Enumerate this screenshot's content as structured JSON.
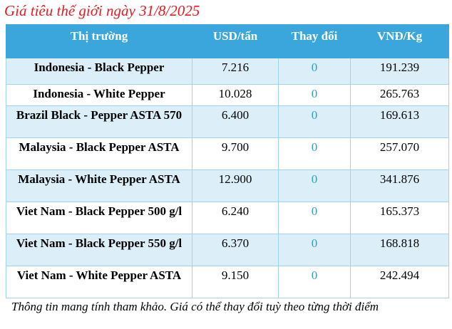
{
  "title": "Giá tiêu thế giới ngày 31/8/2025",
  "table": {
    "headers": [
      "Thị trường",
      "USD/tấn",
      "Thay đổi",
      "VNĐ/Kg"
    ],
    "rows": [
      {
        "market": "Indonesia - Black Pepper",
        "usd": "7.216",
        "change": "0",
        "vnd": "191.239"
      },
      {
        "market": "Indonesia - White Pepper",
        "usd": "10.028",
        "change": "0",
        "vnd": "265.763"
      },
      {
        "market": "Brazil Black - Pepper ASTA 570",
        "usd": "6.400",
        "change": "0",
        "vnd": "169.613"
      },
      {
        "market": "Malaysia - Black Pepper ASTA",
        "usd": "9.700",
        "change": "0",
        "vnd": "257.070"
      },
      {
        "market": "Malaysia - White Pepper ASTA",
        "usd": "12.900",
        "change": "0",
        "vnd": "341.876"
      },
      {
        "market": "Viet Nam - Black Pepper 500 g/l",
        "usd": "6.240",
        "change": "0",
        "vnd": "165.373"
      },
      {
        "market": "Viet Nam - Black Pepper 550 g/l",
        "usd": "6.370",
        "change": "0",
        "vnd": "168.818"
      },
      {
        "market": "Viet Nam - White Pepper ASTA",
        "usd": "9.150",
        "change": "0",
        "vnd": "242.494"
      }
    ]
  },
  "note": "Thông tin mang tính tham khảo. Giá có thể thay đổi tuỳ theo từng thời điểm",
  "colors": {
    "title": "#e8191e",
    "header_bg": "#3aa6dc",
    "row_alt_bg": "#dceff9",
    "change_text": "#27a0d8"
  }
}
